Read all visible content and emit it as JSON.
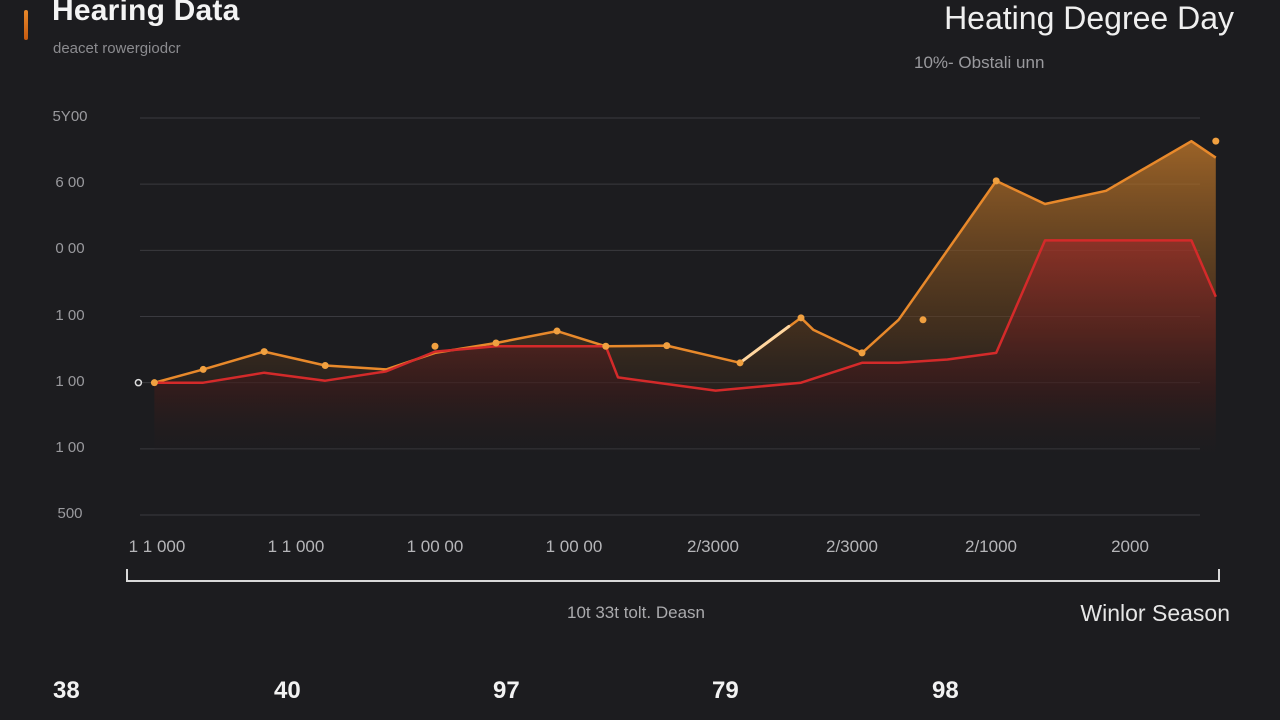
{
  "header": {
    "title": "Hearing Data",
    "subtitle": "deacet rowergiodcr",
    "right_title": "Heating Degree Day",
    "right_subtitle": "10%- Obstali unn"
  },
  "footer": {
    "x_caption": "10t 33t tolt. Deasn",
    "season_label": "Winlor Season",
    "stats": [
      "38",
      "40",
      "97",
      "79",
      "98"
    ]
  },
  "colors": {
    "background": "#1c1c1f",
    "series_orange": "#e8892b",
    "series_red": "#d42a2a",
    "highlight": "#ffd6a0"
  },
  "chart_data": {
    "type": "area",
    "y_tick_labels": [
      "5Y00",
      "6 00",
      "0 00",
      "1 00",
      "1 00",
      "1 00",
      "500"
    ],
    "x_tick_labels": [
      "1 1 000",
      "1 1 000",
      "1 00 00",
      "1 00 00",
      "2/3000",
      "2/3000",
      "2/1000",
      "2000"
    ],
    "ylim": [
      -2,
      4
    ],
    "grid": true,
    "legend": "none",
    "series": [
      {
        "color": "#e8892b",
        "x": [
          0.2,
          0.6,
          1.1,
          1.6,
          2.1,
          2.5,
          3.0,
          3.5,
          3.9,
          4.4,
          5.0,
          5.5,
          5.6,
          6.0,
          6.3,
          7.1,
          7.5,
          8.0,
          8.7,
          8.9
        ],
        "values": [
          0.0,
          0.2,
          0.47,
          0.26,
          0.2,
          0.45,
          0.6,
          0.78,
          0.55,
          0.56,
          0.3,
          0.98,
          0.8,
          0.45,
          0.95,
          3.05,
          2.7,
          2.9,
          3.65,
          3.4
        ]
      },
      {
        "color": "#d42a2a",
        "x": [
          0.2,
          0.6,
          1.1,
          1.6,
          2.1,
          2.5,
          3.0,
          3.5,
          3.9,
          4.0,
          4.8,
          5.5,
          6.0,
          6.3,
          6.7,
          7.1,
          7.5,
          8.0,
          8.7,
          8.9
        ],
        "values": [
          0.0,
          0.0,
          0.15,
          0.03,
          0.17,
          0.47,
          0.55,
          0.55,
          0.55,
          0.08,
          -0.12,
          0.0,
          0.3,
          0.3,
          0.35,
          0.45,
          2.15,
          2.15,
          2.15,
          1.3
        ]
      }
    ],
    "markers": [
      {
        "x": 0.2,
        "y": 0.0
      },
      {
        "x": 0.6,
        "y": 0.2
      },
      {
        "x": 1.1,
        "y": 0.47
      },
      {
        "x": 1.6,
        "y": 0.26
      },
      {
        "x": 2.5,
        "y": 0.55
      },
      {
        "x": 3.0,
        "y": 0.6
      },
      {
        "x": 3.5,
        "y": 0.78
      },
      {
        "x": 3.9,
        "y": 0.55
      },
      {
        "x": 4.4,
        "y": 0.56
      },
      {
        "x": 5.0,
        "y": 0.3
      },
      {
        "x": 5.5,
        "y": 0.98
      },
      {
        "x": 6.0,
        "y": 0.45
      },
      {
        "x": 6.5,
        "y": 0.95
      },
      {
        "x": 7.1,
        "y": 3.05
      },
      {
        "x": 8.9,
        "y": 3.65
      }
    ],
    "highlight_segment": {
      "x": [
        5.0,
        5.4
      ],
      "values": [
        0.3,
        0.85
      ]
    }
  }
}
